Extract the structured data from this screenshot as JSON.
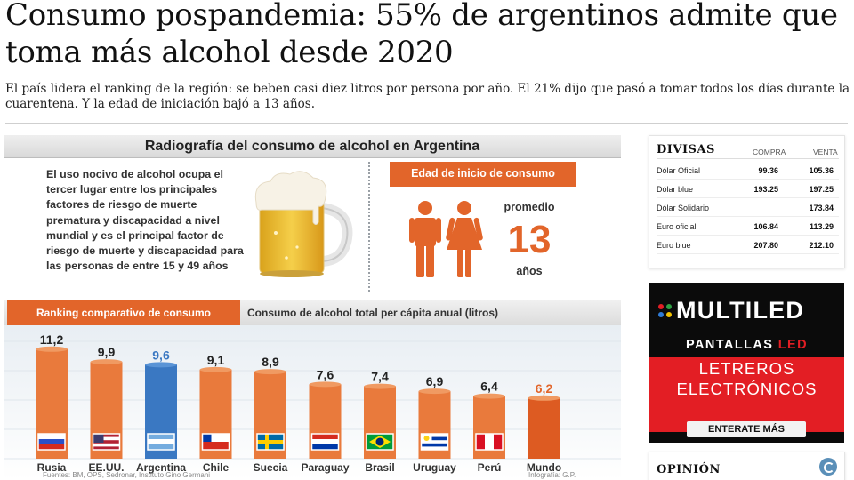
{
  "article": {
    "headline": "Consumo pospandemia: 55% de argentinos admite que toma más alcohol desde 2020",
    "subhead": "El país lidera el ranking de la región: se beben casi diez litros por persona por año. El 21% dijo que pasó a tomar todos los días durante la cuarentena. Y la edad de iniciación bajó a 13 años."
  },
  "infographic": {
    "title": "Radiografía del consumo de alcohol en Argentina",
    "description": "El uso nocivo de alcohol ocupa el tercer lugar entre los principales factores de riesgo de muerte prematura y discapacidad a nivel mundial y es el principal factor de riesgo de muerte y discapacidad para las personas de entre 15 y 49 años",
    "age_title": "Edad de inicio de consumo",
    "age_label_top": "promedio",
    "age_value": "13",
    "age_label_bottom": "años",
    "ranking_label": "Ranking comparativo de consumo",
    "ranking_subtitle": "Consumo de alcohol total per cápita anual (litros)",
    "sources": "Fuentes: BM, OPS, Sedronar, Instituto Gino Germani",
    "credit": "Infografía: G.P.",
    "colors": {
      "orange": "#e2652a",
      "blue": "#3a78c2",
      "dark": "#333333"
    }
  },
  "chart_data": {
    "type": "bar",
    "categories": [
      "Rusia",
      "EE.UU.",
      "Argentina",
      "Chile",
      "Suecia",
      "Paraguay",
      "Brasil",
      "Uruguay",
      "Perú",
      "Mundo"
    ],
    "values": [
      11.2,
      9.9,
      9.6,
      9.1,
      8.9,
      7.6,
      7.4,
      6.9,
      6.4,
      6.2
    ],
    "value_labels": [
      "11,2",
      "9,9",
      "9,6",
      "9,1",
      "8,9",
      "7,6",
      "7,4",
      "6,9",
      "6,4",
      "6,2"
    ],
    "highlight": {
      "Argentina": "#3a78c2",
      "Mundo": "#e2652a"
    },
    "ylim": [
      0,
      12
    ],
    "title": "Ranking comparativo de consumo"
  },
  "divisas": {
    "title": "DIVISAS",
    "col_buy": "COMPRA",
    "col_sell": "VENTA",
    "rows": [
      {
        "name": "Dólar Oficial",
        "buy": "99.36",
        "sell": "105.36"
      },
      {
        "name": "Dólar blue",
        "buy": "193.25",
        "sell": "197.25"
      },
      {
        "name": "Dólar Solidario",
        "buy": "",
        "sell": "173.84"
      },
      {
        "name": "Euro oficial",
        "buy": "106.84",
        "sell": "113.29"
      },
      {
        "name": "Euro blue",
        "buy": "207.80",
        "sell": "212.10"
      }
    ]
  },
  "ad": {
    "brand_line1": "MULTILED",
    "brand_line2a": "PANTALLAS ",
    "brand_line2b": "LED",
    "red_line1": "LETREROS",
    "red_line2": "ELECTRÓNICOS",
    "cta": "ENTERATE MÁS"
  },
  "opinion": {
    "title": "OPINIÓN"
  }
}
